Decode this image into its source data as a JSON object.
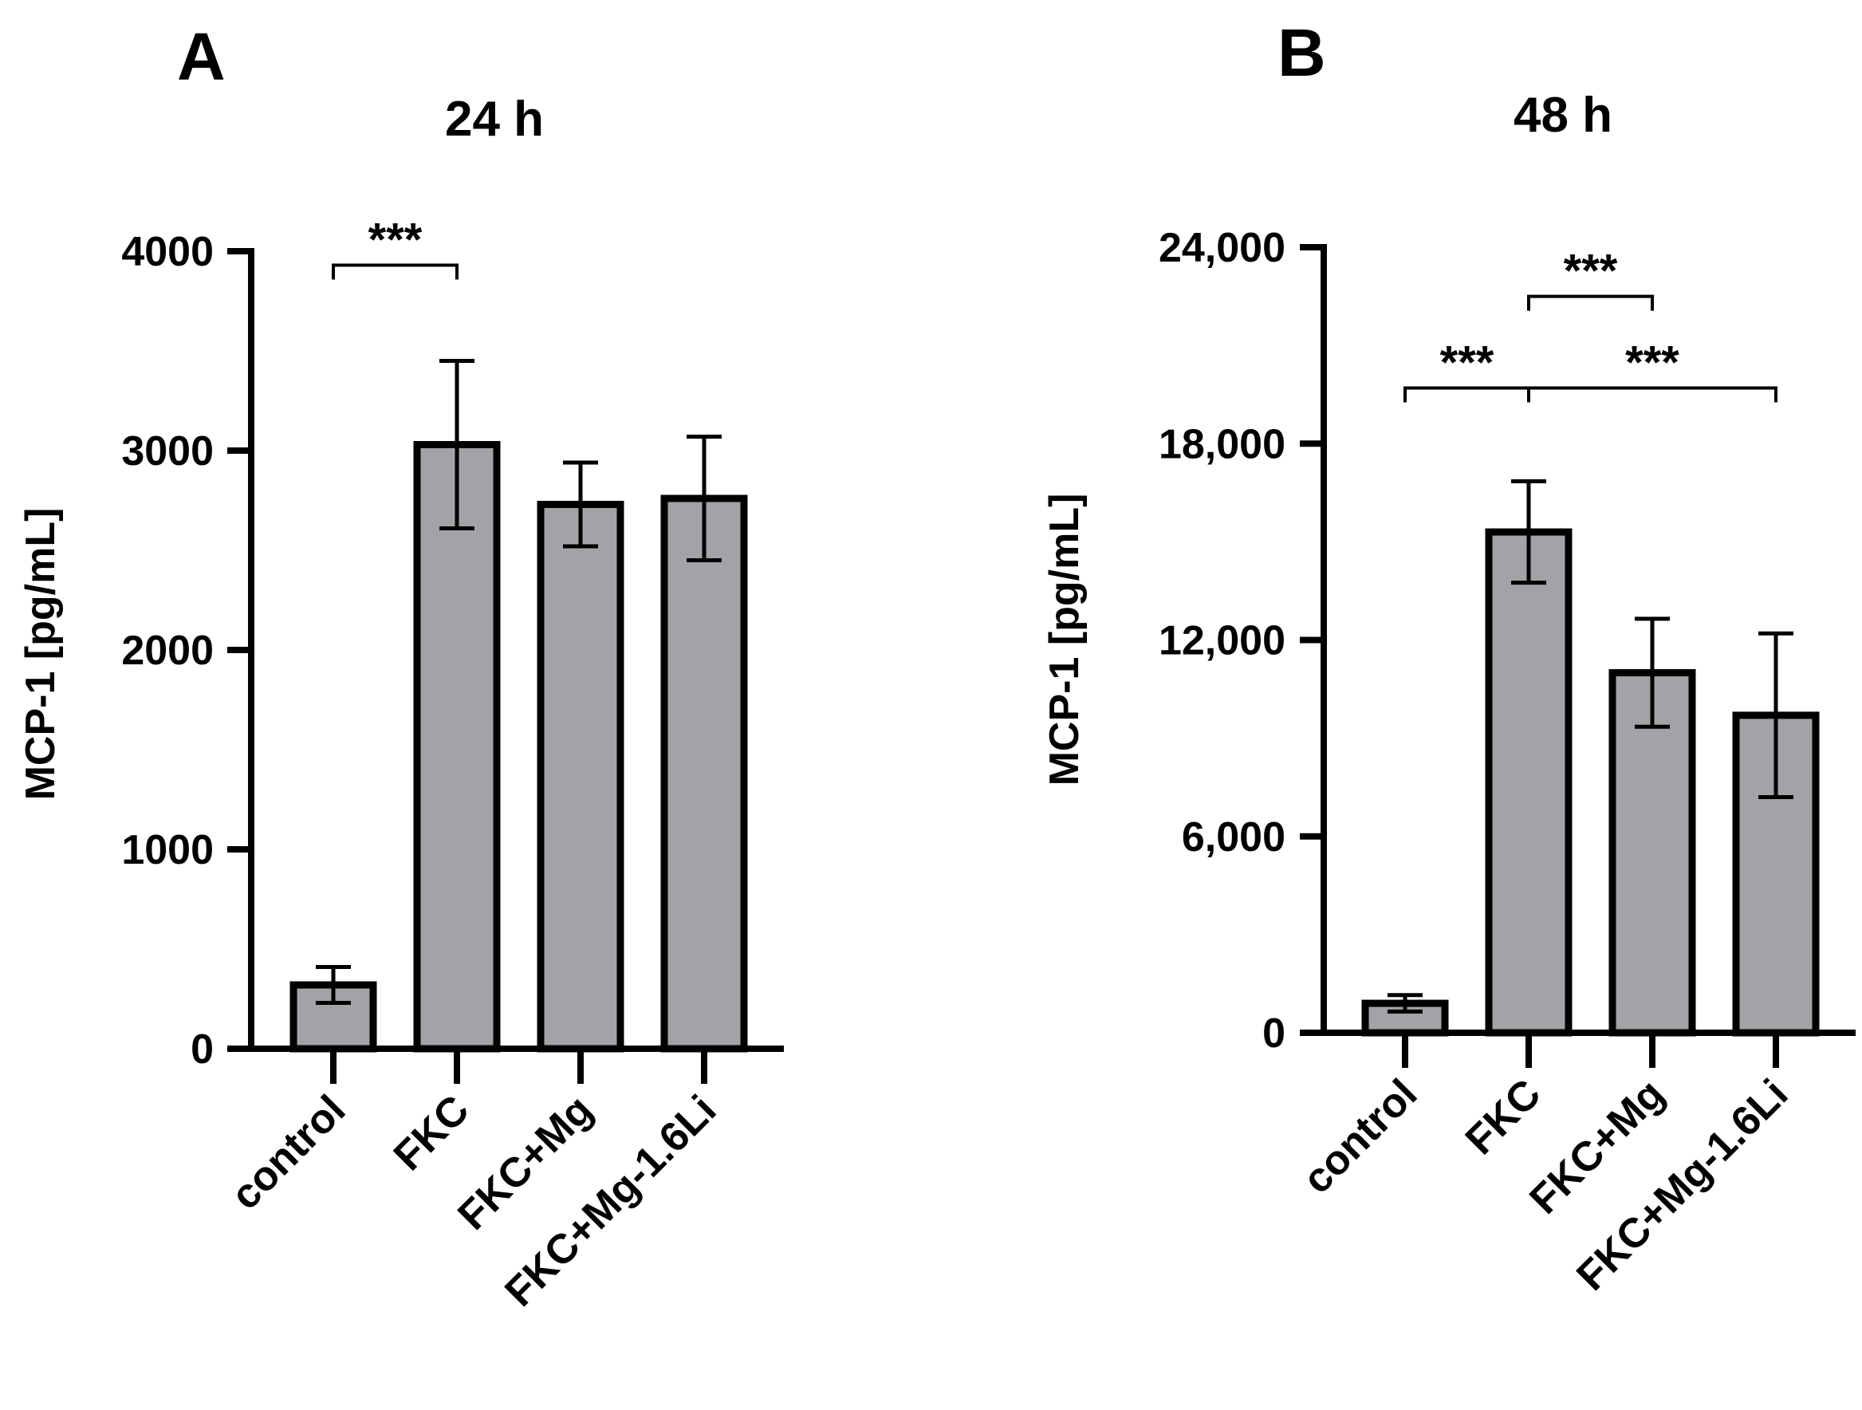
{
  "chart_data": [
    {
      "type": "bar",
      "panel_label": "A",
      "title": "24 h",
      "xlabel": "",
      "ylabel": "MCP-1 [pg/mL]",
      "ylim": [
        0,
        4000
      ],
      "yticks": [
        0,
        1000,
        2000,
        3000,
        4000
      ],
      "ytick_labels": [
        "0",
        "1000",
        "2000",
        "3000",
        "4000"
      ],
      "categories": [
        "control",
        "FKC",
        "FKC+Mg",
        "FKC+Mg-1.6Li"
      ],
      "values": [
        320,
        3030,
        2730,
        2760
      ],
      "errors": [
        90,
        420,
        210,
        310
      ],
      "bar_color": "#a3a3a7",
      "significance": [
        {
          "from": 0,
          "to": 1,
          "label": "***",
          "y": 3930
        }
      ]
    },
    {
      "type": "bar",
      "panel_label": "B",
      "title": "48 h",
      "xlabel": "",
      "ylabel": "MCP-1 [pg/mL]",
      "ylim": [
        0,
        24000
      ],
      "yticks": [
        0,
        6000,
        12000,
        18000,
        24000
      ],
      "ytick_labels": [
        "0",
        "6,000",
        "12,000",
        "18,000",
        "24,000"
      ],
      "categories": [
        "control",
        "FKC",
        "FKC+Mg",
        "FKC+Mg-1.6Li"
      ],
      "values": [
        900,
        15300,
        11000,
        9700
      ],
      "errors": [
        250,
        1550,
        1650,
        2500
      ],
      "bar_color": "#a3a3a7",
      "significance": [
        {
          "from": 0,
          "to": 1,
          "label": "***",
          "y": 19700
        },
        {
          "from": 1,
          "to": 2,
          "label": "***",
          "y": 22500
        },
        {
          "from": 1,
          "to": 3,
          "label": "***",
          "y": 19700
        }
      ]
    }
  ]
}
